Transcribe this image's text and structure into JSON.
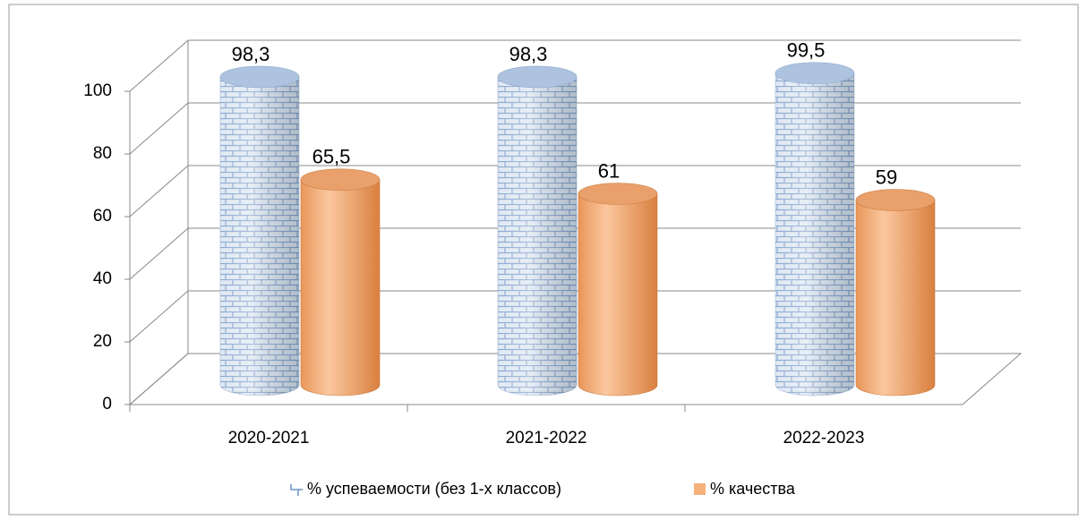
{
  "chart_data": {
    "type": "bar3d",
    "categories": [
      "2020-2021",
      "2021-2022",
      "2022-2023"
    ],
    "series": [
      {
        "name": "% успеваемости (без 1-х классов)",
        "color": "#b8cce4",
        "values": [
          98.3,
          98.3,
          99.5
        ],
        "value_labels": [
          "98,3",
          "98,3",
          "99,5"
        ]
      },
      {
        "name": "% качества",
        "color": "#f5b27d",
        "values": [
          65.5,
          61,
          59
        ],
        "value_labels": [
          "65,5",
          "61",
          "59"
        ]
      }
    ],
    "ylim": [
      0,
      100
    ],
    "yticks": [
      0,
      20,
      40,
      60,
      80,
      100
    ],
    "grid": true,
    "legend": "bottom"
  }
}
